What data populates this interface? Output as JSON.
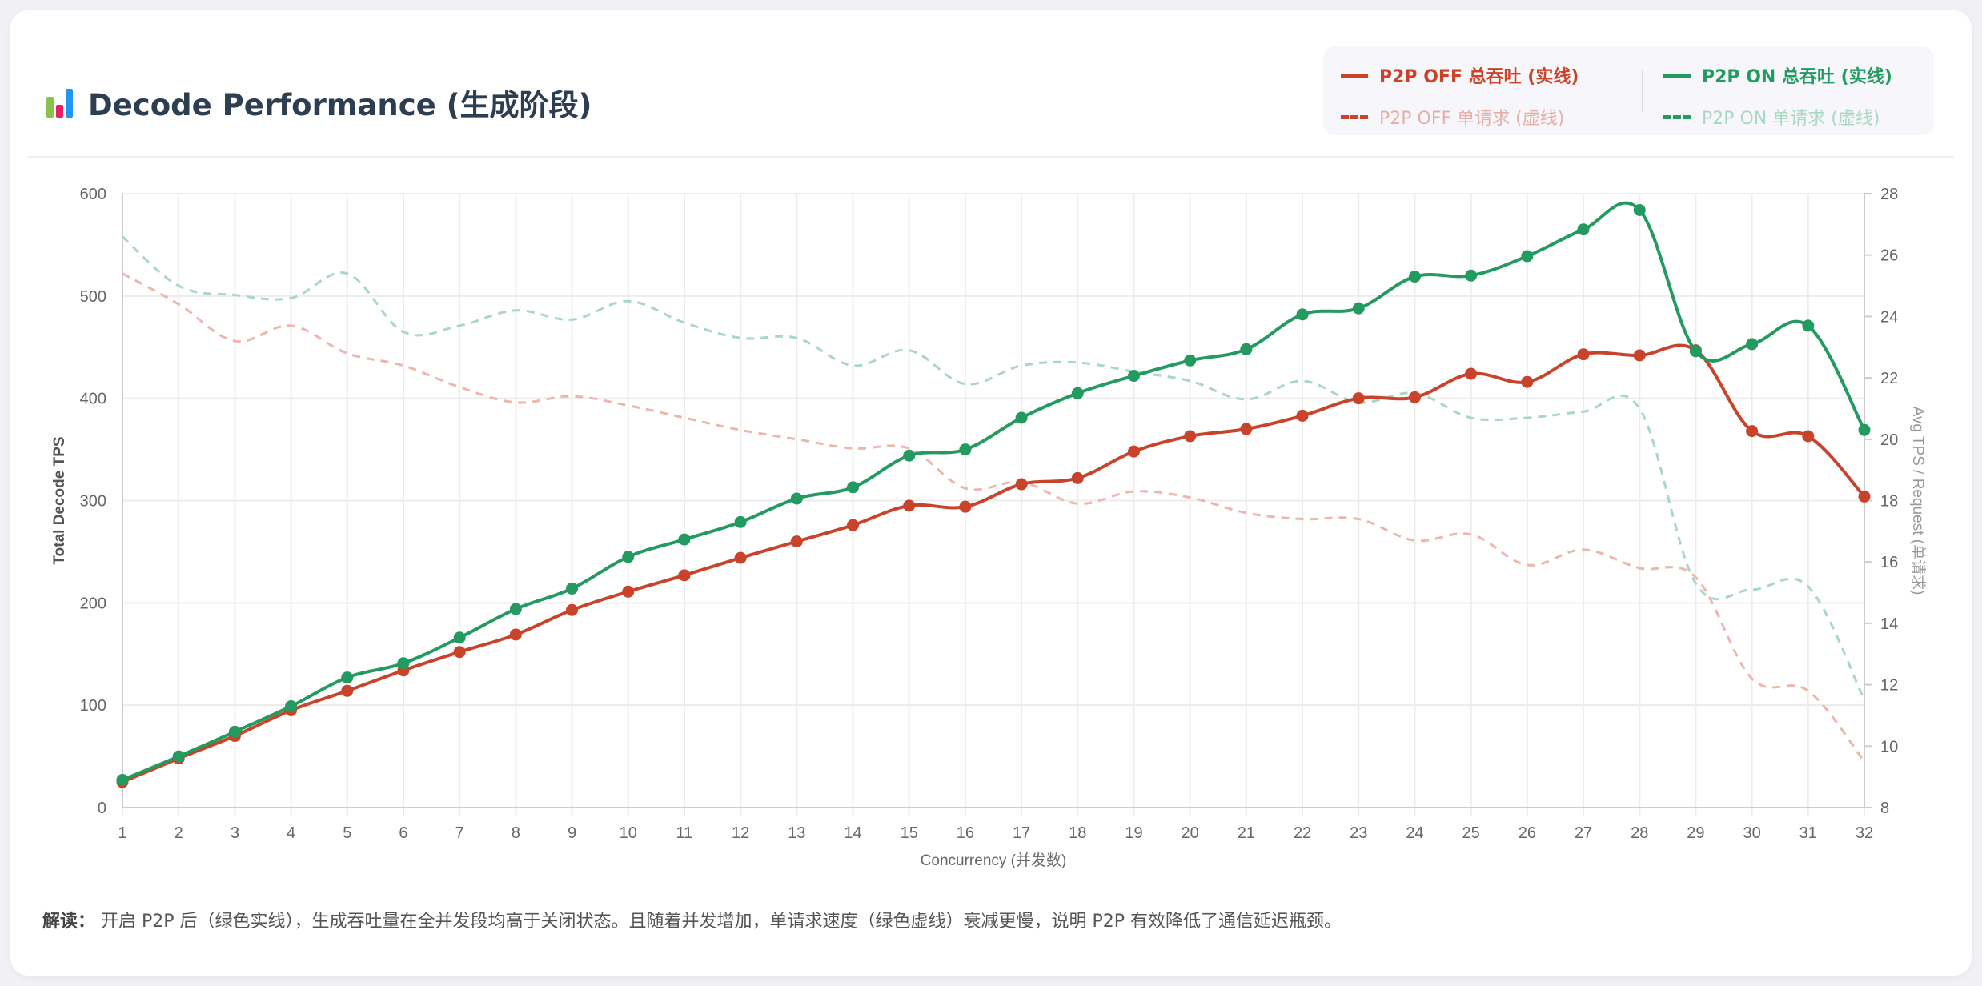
{
  "header": {
    "title": "Decode Performance (生成阶段)",
    "icon": "bar-chart-icon"
  },
  "legend": {
    "off_total": "P2P OFF 总吞吐 (实线)",
    "on_total": "P2P ON 总吞吐 (实线)",
    "off_req": "P2P OFF 单请求 (虚线)",
    "on_req": "P2P ON 单请求 (虚线)"
  },
  "note": {
    "label": "解读：",
    "text": "开启 P2P 后（绿色实线），生成吞吐量在全并发段均高于关闭状态。且随着并发增加，单请求速度（绿色虚线）衰减更慢，说明 P2P 有效降低了通信延迟瓶颈。"
  },
  "colors": {
    "off": "#c9432b",
    "on": "#229a60",
    "off_light": "#ecb5ae",
    "on_light": "#a8d8c1"
  },
  "chart_data": {
    "type": "line",
    "title": "Decode Performance (生成阶段)",
    "xlabel": "Concurrency (并发数)",
    "ylabel": "Total Decode TPS",
    "y2label": "Avg TPS / Request (单请求)",
    "ylim": [
      0,
      600
    ],
    "yticks": [
      0,
      100,
      200,
      300,
      400,
      500,
      600
    ],
    "y2lim": [
      8,
      28
    ],
    "y2ticks": [
      8,
      10,
      12,
      14,
      16,
      18,
      20,
      22,
      24,
      26,
      28
    ],
    "grid": true,
    "x": [
      1,
      2,
      3,
      4,
      5,
      6,
      7,
      8,
      9,
      10,
      11,
      12,
      13,
      14,
      15,
      16,
      17,
      18,
      19,
      20,
      21,
      22,
      23,
      24,
      25,
      26,
      27,
      28,
      29,
      30,
      31,
      32
    ],
    "series": [
      {
        "name": "P2P OFF 总吞吐 (实线)",
        "axis": "left",
        "style": "solid",
        "values": [
          25,
          48,
          70,
          95,
          114,
          134,
          152,
          169,
          193,
          211,
          227,
          244,
          260,
          276,
          295,
          294,
          316,
          322,
          348,
          363,
          370,
          383,
          400,
          401,
          424,
          416,
          443,
          442,
          447,
          368,
          363,
          304
        ]
      },
      {
        "name": "P2P ON 总吞吐 (实线)",
        "axis": "left",
        "style": "solid",
        "values": [
          27,
          50,
          74,
          99,
          127,
          141,
          166,
          194,
          214,
          245,
          262,
          279,
          302,
          313,
          344,
          350,
          381,
          405,
          422,
          437,
          448,
          482,
          488,
          519,
          520,
          539,
          565,
          584,
          446,
          453,
          471,
          369
        ]
      },
      {
        "name": "P2P OFF 单请求 (虚线)",
        "axis": "right",
        "style": "dashed",
        "values": [
          25.4,
          24.4,
          23.2,
          23.7,
          22.8,
          22.4,
          21.7,
          21.2,
          21.4,
          21.1,
          20.7,
          20.3,
          20.0,
          19.7,
          19.7,
          18.4,
          18.6,
          17.9,
          18.3,
          18.1,
          17.6,
          17.4,
          17.4,
          16.7,
          16.9,
          15.9,
          16.4,
          15.8,
          15.5,
          12.2,
          11.8,
          9.5
        ]
      },
      {
        "name": "P2P ON 单请求 (虚线)",
        "axis": "right",
        "style": "dashed",
        "values": [
          26.6,
          25.0,
          24.7,
          24.6,
          25.4,
          23.5,
          23.7,
          24.2,
          23.9,
          24.5,
          23.8,
          23.3,
          23.3,
          22.4,
          22.9,
          21.8,
          22.4,
          22.5,
          22.2,
          21.9,
          21.3,
          21.9,
          21.2,
          21.5,
          20.7,
          20.7,
          20.9,
          21.0,
          15.3,
          15.1,
          15.2,
          11.5
        ]
      }
    ]
  }
}
